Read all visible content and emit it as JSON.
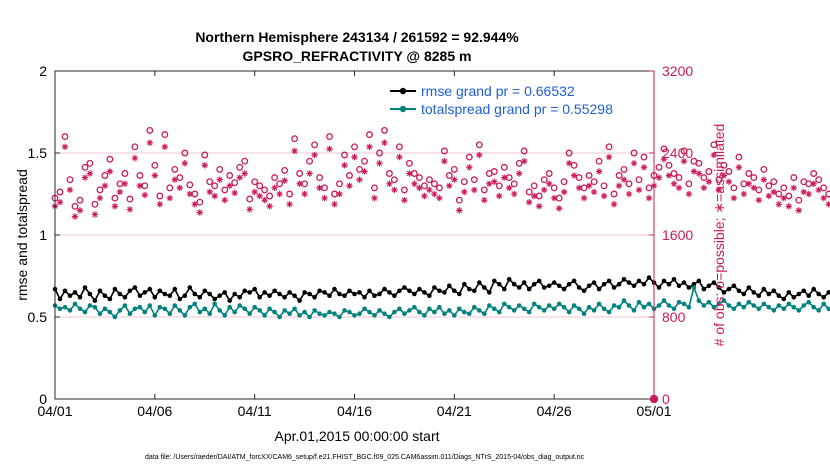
{
  "chart_data": {
    "type": "line",
    "title_line1": "Northern Hemisphere 243134 / 261592 = 92.944%",
    "title_line2": "GPSRO_REFRACTIVITY @ 8285 m",
    "xlabel": "Apr.01,2015 00:00:00 start",
    "ylabel_left": "rmse and totalspread",
    "ylabel_right": "# of obs: o=possible; ∗=assimilated",
    "footnote": "data file: /Users/raeder/DAI/ATM_forcXX/CAM6_setup/f.e21.FHIST_BGC.f09_025.CAM6assim.011/Diags_NTrS_2015-04/obs_diag_output.nc",
    "x_tick_labels": [
      "04/01",
      "04/06",
      "04/11",
      "04/16",
      "04/21",
      "04/26",
      "05/01"
    ],
    "x_tick_days": [
      0,
      5,
      10,
      15,
      20,
      25,
      30
    ],
    "xlim": [
      0,
      30
    ],
    "ylim_left": [
      0,
      2
    ],
    "yticks_left": [
      0,
      0.5,
      1,
      1.5,
      2
    ],
    "ytick_labels_left": [
      "0",
      "0.5",
      "1",
      "1.5",
      "2"
    ],
    "ylim_right": [
      0,
      3200
    ],
    "yticks_right": [
      0,
      800,
      1600,
      2400,
      3200
    ],
    "ytick_labels_right": [
      "0",
      "800",
      "1600",
      "2400",
      "3200"
    ],
    "step_days": 0.25,
    "legend_position": "top-right",
    "series": [
      {
        "name": "rmse grand pr = 0.66532",
        "axis": "left",
        "color": "#000000",
        "marker": "filled-circle",
        "values": [
          0.67,
          0.61,
          0.66,
          0.63,
          0.65,
          0.62,
          0.68,
          0.64,
          0.6,
          0.66,
          0.63,
          0.61,
          0.67,
          0.64,
          0.62,
          0.66,
          0.68,
          0.63,
          0.65,
          0.67,
          0.62,
          0.66,
          0.64,
          0.63,
          0.67,
          0.61,
          0.63,
          0.68,
          0.64,
          0.62,
          0.66,
          0.64,
          0.61,
          0.63,
          0.65,
          0.6,
          0.64,
          0.62,
          0.66,
          0.65,
          0.67,
          0.62,
          0.65,
          0.63,
          0.66,
          0.64,
          0.62,
          0.65,
          0.63,
          0.6,
          0.65,
          0.64,
          0.62,
          0.66,
          0.65,
          0.63,
          0.67,
          0.64,
          0.63,
          0.66,
          0.64,
          0.65,
          0.62,
          0.66,
          0.63,
          0.64,
          0.67,
          0.65,
          0.63,
          0.66,
          0.68,
          0.66,
          0.64,
          0.67,
          0.65,
          0.63,
          0.68,
          0.66,
          0.65,
          0.69,
          0.66,
          0.64,
          0.7,
          0.67,
          0.66,
          0.71,
          0.68,
          0.65,
          0.72,
          0.7,
          0.67,
          0.73,
          0.7,
          0.68,
          0.71,
          0.67,
          0.7,
          0.72,
          0.68,
          0.69,
          0.71,
          0.69,
          0.67,
          0.7,
          0.72,
          0.68,
          0.66,
          0.69,
          0.71,
          0.67,
          0.7,
          0.72,
          0.68,
          0.7,
          0.73,
          0.71,
          0.69,
          0.72,
          0.7,
          0.74,
          0.71,
          0.68,
          0.72,
          0.7,
          0.73,
          0.69,
          0.71,
          0.68,
          0.7,
          0.72,
          0.67,
          0.69,
          0.71,
          0.68,
          0.65,
          0.67,
          0.69,
          0.66,
          0.64,
          0.68,
          0.65,
          0.63,
          0.67,
          0.64,
          0.66,
          0.63,
          0.61,
          0.65,
          0.62,
          0.64,
          0.66,
          0.63,
          0.67,
          0.64,
          0.62,
          0.65,
          0.63,
          0.68,
          0.65,
          0.62,
          0.66,
          0.63,
          0.61,
          0.64,
          0.62,
          0.6,
          0.64,
          0.61,
          0.59,
          0.63,
          0.67,
          0.62,
          0.6,
          0.64,
          0.61,
          0.66,
          0.65,
          0.63,
          0.61
        ]
      },
      {
        "name": "totalspread grand pr = 0.55298",
        "axis": "left",
        "color": "#00827f",
        "marker": "filled-circle",
        "values": [
          0.57,
          0.55,
          0.56,
          0.54,
          0.58,
          0.55,
          0.53,
          0.57,
          0.56,
          0.52,
          0.55,
          0.53,
          0.5,
          0.54,
          0.57,
          0.52,
          0.55,
          0.56,
          0.53,
          0.57,
          0.51,
          0.56,
          0.55,
          0.52,
          0.57,
          0.54,
          0.51,
          0.56,
          0.58,
          0.53,
          0.55,
          0.52,
          0.58,
          0.54,
          0.51,
          0.56,
          0.53,
          0.57,
          0.55,
          0.52,
          0.56,
          0.54,
          0.51,
          0.55,
          0.53,
          0.5,
          0.54,
          0.52,
          0.55,
          0.51,
          0.53,
          0.5,
          0.54,
          0.52,
          0.51,
          0.53,
          0.52,
          0.5,
          0.54,
          0.53,
          0.51,
          0.52,
          0.55,
          0.53,
          0.51,
          0.54,
          0.52,
          0.5,
          0.53,
          0.55,
          0.52,
          0.54,
          0.56,
          0.53,
          0.51,
          0.55,
          0.53,
          0.56,
          0.52,
          0.54,
          0.51,
          0.55,
          0.53,
          0.52,
          0.56,
          0.54,
          0.52,
          0.57,
          0.55,
          0.53,
          0.58,
          0.56,
          0.54,
          0.57,
          0.55,
          0.53,
          0.58,
          0.56,
          0.54,
          0.57,
          0.55,
          0.58,
          0.56,
          0.53,
          0.57,
          0.55,
          0.52,
          0.56,
          0.54,
          0.58,
          0.55,
          0.53,
          0.57,
          0.56,
          0.6,
          0.57,
          0.54,
          0.59,
          0.56,
          0.58,
          0.55,
          0.57,
          0.6,
          0.57,
          0.55,
          0.59,
          0.58,
          0.56,
          0.68,
          0.6,
          0.57,
          0.59,
          0.56,
          0.58,
          0.6,
          0.57,
          0.55,
          0.58,
          0.56,
          0.59,
          0.57,
          0.55,
          0.58,
          0.56,
          0.54,
          0.57,
          0.55,
          0.58,
          0.56,
          0.54,
          0.57,
          0.59,
          0.56,
          0.54,
          0.58,
          0.55,
          0.57,
          0.53,
          0.56,
          0.55,
          0.57,
          0.54,
          0.56,
          0.58,
          0.55,
          0.53,
          0.57,
          0.55,
          0.56,
          0.59,
          0.55,
          0.57,
          0.61,
          0.55,
          0.5,
          0.62,
          0.56,
          0.54,
          0.57,
          0.53,
          0.54
        ]
      },
      {
        "name": "# of obs possible",
        "axis": "right",
        "color": "#cc1a5a",
        "marker": "open-circle",
        "values": [
          1960,
          2020,
          2560,
          2140,
          1880,
          1940,
          2260,
          2300,
          1900,
          2040,
          2180,
          2340,
          1960,
          2100,
          2200,
          1950,
          2460,
          2180,
          2080,
          2620,
          2280,
          1980,
          2580,
          2060,
          2240,
          2160,
          2400,
          2090,
          2000,
          1920,
          2380,
          2120,
          2080,
          2240,
          2040,
          2180,
          2110,
          2260,
          2320,
          1950,
          2120,
          2080,
          2040,
          1980,
          2160,
          2100,
          2230,
          2000,
          2540,
          2200,
          2100,
          2320,
          2480,
          2160,
          2060,
          2560,
          2000,
          2100,
          2380,
          2180,
          2460,
          2240,
          2320,
          2580,
          2060,
          2400,
          2620,
          2200,
          2140,
          2460,
          2040,
          2300,
          2200,
          2160,
          2080,
          2140,
          2100,
          2060,
          2420,
          2180,
          2240,
          1940,
          2120,
          2360,
          2140,
          2480,
          2040,
          2200,
          2220,
          2080,
          2260,
          2160,
          2100,
          2300,
          2420,
          2020,
          2080,
          1980,
          2140,
          2200,
          2060,
          1960,
          2120,
          2400,
          2280,
          2160,
          2060,
          2180,
          2120,
          2320,
          2080,
          2460,
          2000,
          2180,
          2240,
          2100,
          2400,
          2140,
          2360,
          2060,
          2180,
          2260,
          2440,
          2280,
          2200,
          2160,
          2420,
          2100,
          2320,
          2300,
          2160,
          2220,
          2480,
          2140,
          2280,
          2220,
          2060,
          2360,
          2100,
          2200,
          2160,
          2040,
          2240,
          2080,
          2120,
          2000,
          2060,
          1980,
          2160,
          1940,
          2120,
          2100,
          2200,
          2140,
          2060,
          2000,
          2220,
          2160,
          2120,
          2060,
          2180,
          2260,
          2180,
          2440,
          2040,
          1880,
          2160,
          2280,
          2560,
          2240,
          2380,
          1800,
          2040,
          1760,
          2200,
          2080,
          2200,
          2140,
          2160,
          2080
        ]
      },
      {
        "name": "# of obs assimilated",
        "axis": "right",
        "color": "#cc1a5a",
        "marker": "asterisk",
        "values": [
          1880,
          1920,
          2460,
          2040,
          1780,
          1840,
          2160,
          2200,
          1800,
          1960,
          2080,
          2220,
          1880,
          2020,
          2100,
          1850,
          2350,
          2080,
          1990,
          2500,
          2180,
          1900,
          2460,
          1960,
          2140,
          2060,
          2300,
          2000,
          1900,
          1820,
          2280,
          2020,
          1980,
          2140,
          1940,
          2080,
          2010,
          2160,
          2200,
          1850,
          2020,
          1980,
          1940,
          1880,
          2060,
          2000,
          2130,
          1900,
          2420,
          2100,
          2000,
          2200,
          2380,
          2060,
          1960,
          2440,
          1900,
          2000,
          2280,
          2080,
          2360,
          2140,
          2220,
          2460,
          1960,
          2300,
          2500,
          2100,
          2040,
          2360,
          1940,
          2200,
          2100,
          2060,
          1980,
          2040,
          2000,
          1960,
          2320,
          2080,
          2140,
          1840,
          2020,
          2260,
          2040,
          2380,
          1940,
          2100,
          2120,
          1980,
          2160,
          2060,
          2000,
          2200,
          2320,
          1920,
          1980,
          1880,
          2040,
          2100,
          1960,
          1860,
          2020,
          2300,
          2180,
          2060,
          1960,
          2080,
          2020,
          2220,
          1980,
          2360,
          1900,
          2080,
          2140,
          2000,
          2300,
          2040,
          2260,
          1960,
          2080,
          2160,
          2340,
          2180,
          2100,
          2060,
          2320,
          2000,
          2220,
          2200,
          2060,
          2120,
          2380,
          2040,
          2180,
          2120,
          1960,
          2260,
          2000,
          2100,
          2060,
          1940,
          2140,
          1980,
          2020,
          1900,
          1960,
          1880,
          2060,
          1840,
          2020,
          2000,
          2100,
          2040,
          1960,
          1900,
          2120,
          2060,
          2020,
          1960,
          2080,
          2160,
          2080,
          2340,
          1940,
          1700,
          2060,
          2180,
          2420,
          2140,
          2280,
          1560,
          1940,
          1440,
          2100,
          1980,
          2100,
          2040,
          2060,
          1980
        ]
      }
    ]
  }
}
